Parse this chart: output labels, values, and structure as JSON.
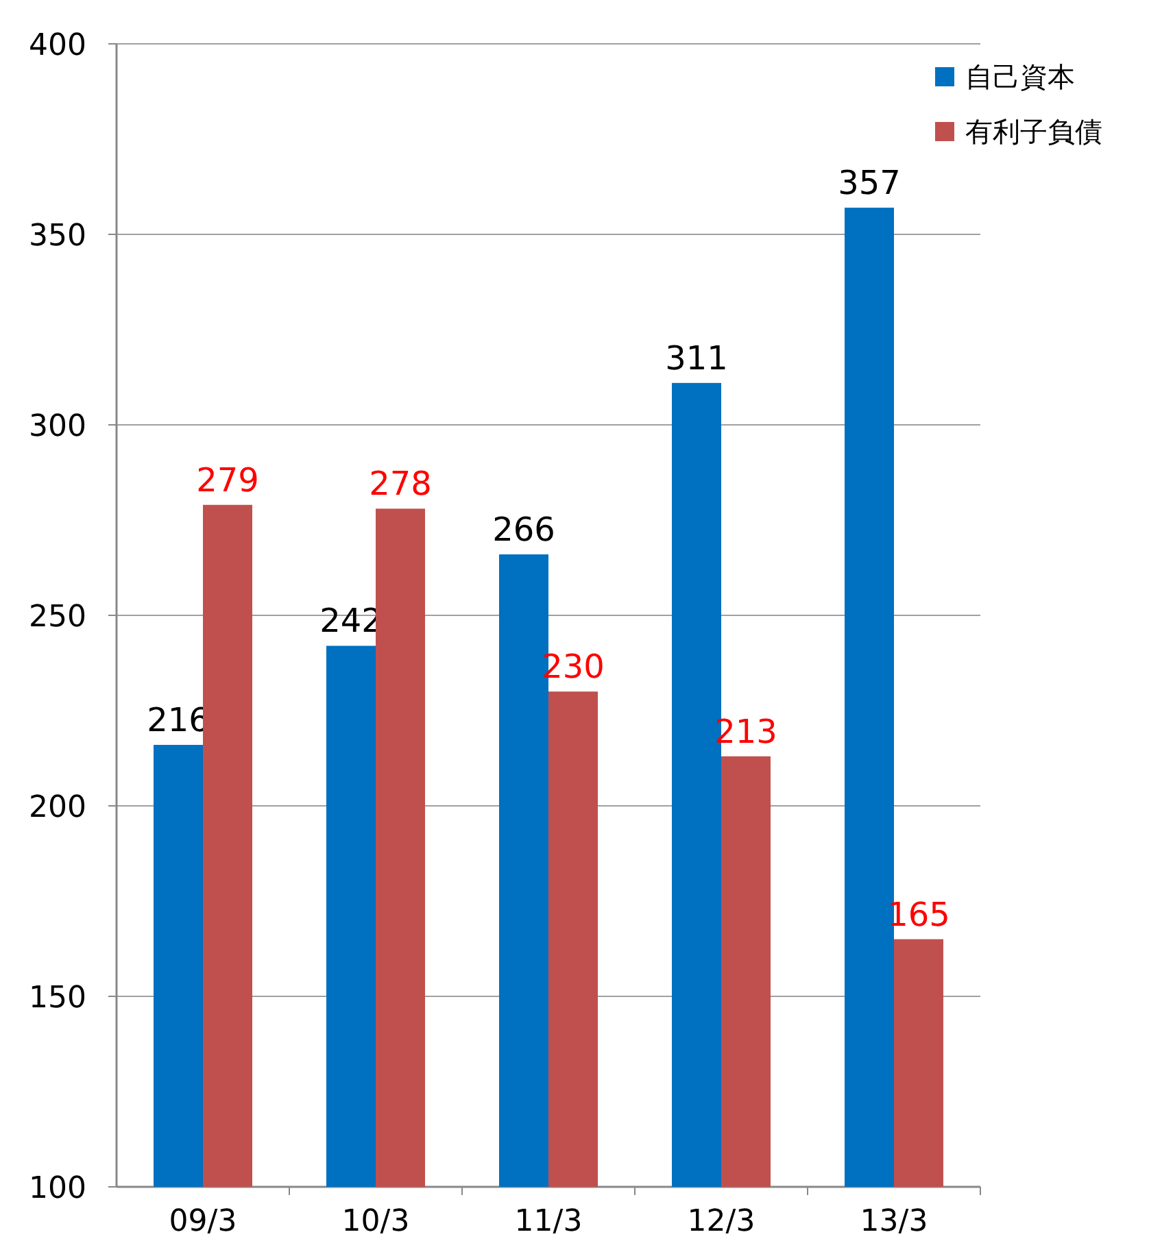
{
  "chart_data": {
    "type": "bar",
    "categories": [
      "09/3",
      "10/3",
      "11/3",
      "12/3",
      "13/3"
    ],
    "series": [
      {
        "name": "自己資本",
        "color": "#0070c0",
        "values": [
          216,
          242,
          266,
          311,
          357
        ]
      },
      {
        "name": "有利子負債",
        "color": "#c0504d",
        "values": [
          279,
          278,
          230,
          213,
          165
        ]
      }
    ],
    "ylim": [
      100,
      400
    ],
    "yticks": [
      100,
      150,
      200,
      250,
      300,
      350,
      400
    ],
    "grid": "y",
    "legend": "top right",
    "data_labels": true
  }
}
